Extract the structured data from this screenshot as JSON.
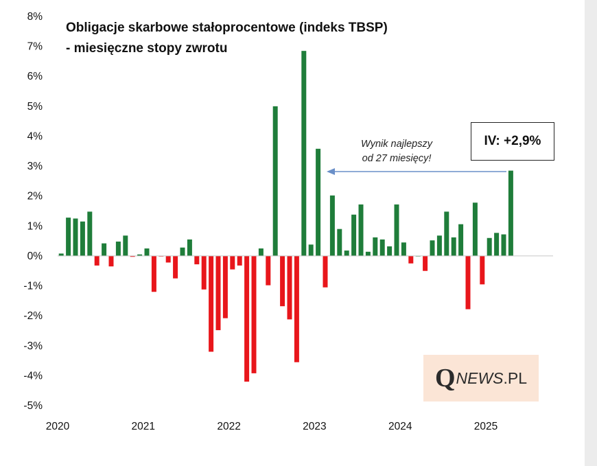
{
  "title_line1": "Obligacje skarbowe stałoprocentowe (indeks TBSP)",
  "title_line2": "- miesięczne stopy zwrotu",
  "annotation_line1": "Wynik najlepszy",
  "annotation_line2": "od 27 miesięcy!",
  "callout": "IV: +2,9%",
  "logo": {
    "q": "Q",
    "news": "NEWS",
    "suffix": ".PL"
  },
  "colors": {
    "positive": "#1f7d3a",
    "negative": "#e8161b",
    "arrow": "#6a8fc8"
  },
  "chart_data": {
    "type": "bar",
    "title": "Obligacje skarbowe stałoprocentowe (indeks TBSP) - miesięczne stopy zwrotu",
    "xlabel": "",
    "ylabel": "",
    "ylim": [
      -5,
      8
    ],
    "yticks": [
      "8%",
      "7%",
      "6%",
      "5%",
      "4%",
      "3%",
      "2%",
      "1%",
      "0%",
      "-1%",
      "-2%",
      "-3%",
      "-4%",
      "-5%"
    ],
    "xticks": [
      "2020",
      "2021",
      "2022",
      "2023",
      "2024",
      "2025"
    ],
    "grid": false,
    "unit": "%",
    "categories": [
      "2020-01",
      "2020-02",
      "2020-03",
      "2020-04",
      "2020-05",
      "2020-06",
      "2020-07",
      "2020-08",
      "2020-09",
      "2020-10",
      "2020-11",
      "2020-12",
      "2021-01",
      "2021-02",
      "2021-03",
      "2021-04",
      "2021-05",
      "2021-06",
      "2021-07",
      "2021-08",
      "2021-09",
      "2021-10",
      "2021-11",
      "2021-12",
      "2022-01",
      "2022-02",
      "2022-03",
      "2022-04",
      "2022-05",
      "2022-06",
      "2022-07",
      "2022-08",
      "2022-09",
      "2022-10",
      "2022-11",
      "2022-12",
      "2023-01",
      "2023-02",
      "2023-03",
      "2023-04",
      "2023-05",
      "2023-06",
      "2023-07",
      "2023-08",
      "2023-09",
      "2023-10",
      "2023-11",
      "2023-12",
      "2024-01",
      "2024-02",
      "2024-03",
      "2024-04",
      "2024-05",
      "2024-06",
      "2024-07",
      "2024-08",
      "2024-09",
      "2024-10",
      "2024-11",
      "2024-12",
      "2025-01",
      "2025-02",
      "2025-03",
      "2025-04"
    ],
    "values": [
      0.08,
      1.28,
      1.25,
      1.15,
      1.48,
      -0.32,
      0.42,
      -0.35,
      0.48,
      0.68,
      -0.03,
      0.05,
      0.25,
      -1.2,
      -0.02,
      -0.22,
      -0.75,
      0.28,
      0.55,
      -0.28,
      -1.12,
      -3.2,
      -2.48,
      -2.08,
      -0.45,
      -0.32,
      -4.2,
      -3.92,
      0.25,
      -0.98,
      5.0,
      -1.68,
      -2.12,
      -3.55,
      6.85,
      0.38,
      3.58,
      -1.05,
      2.02,
      0.9,
      0.18,
      1.38,
      1.72,
      0.14,
      0.62,
      0.55,
      0.32,
      1.72,
      0.45,
      -0.25,
      0.0,
      -0.5,
      0.52,
      0.68,
      1.48,
      0.62,
      1.06,
      -1.78,
      1.78,
      -0.95,
      0.6,
      0.77,
      0.72,
      2.85
    ]
  }
}
